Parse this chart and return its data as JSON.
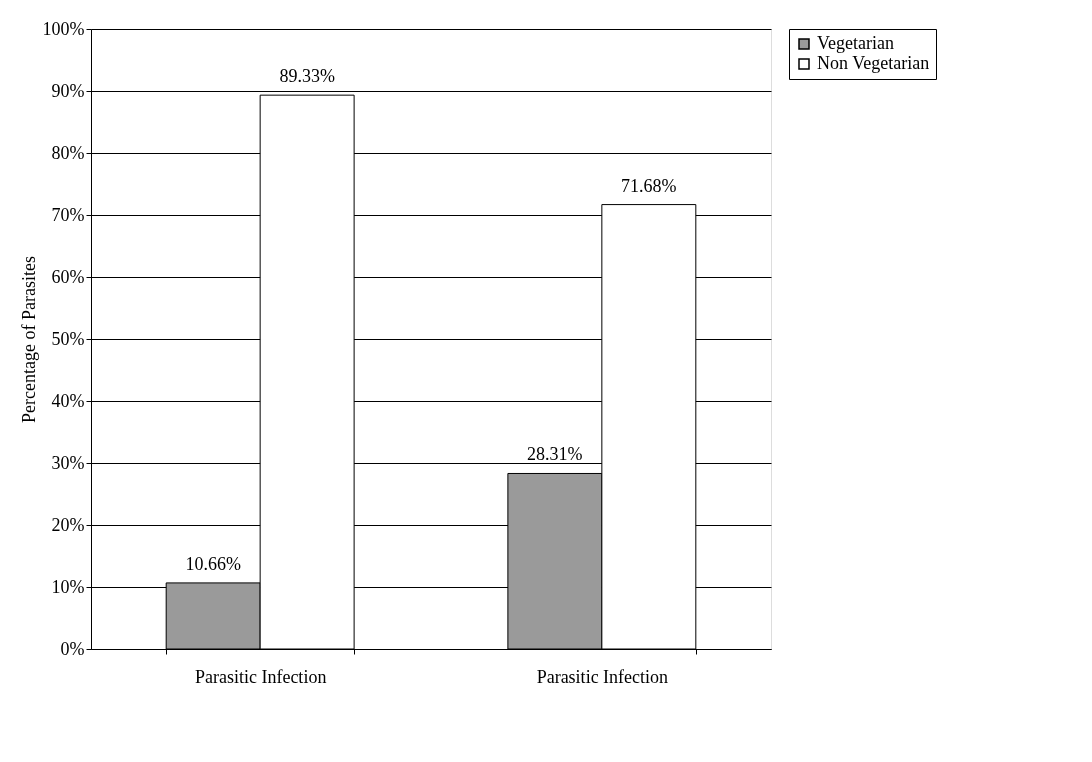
{
  "chart_data": {
    "type": "bar",
    "ylabel": "Percentage of Parasites",
    "categories": [
      "Parasitic Infection",
      "Parasitic Infection"
    ],
    "series": [
      {
        "name": "Vegetarian",
        "color": "#9a9a9a",
        "values": [
          10.66,
          28.31
        ],
        "value_labels": [
          "10.66%",
          "28.31%"
        ]
      },
      {
        "name": "Non Vegetarian",
        "color": "#ffffff",
        "values": [
          89.33,
          71.68
        ],
        "value_labels": [
          "89.33%",
          "71.68%"
        ]
      }
    ],
    "ylim": [
      0,
      100
    ],
    "yticks": [
      {
        "value": 0,
        "label": "0%"
      },
      {
        "value": 10,
        "label": "10%"
      },
      {
        "value": 20,
        "label": "20%"
      },
      {
        "value": 30,
        "label": "30%"
      },
      {
        "value": 40,
        "label": "40%"
      },
      {
        "value": 50,
        "label": "50%"
      },
      {
        "value": 60,
        "label": "60%"
      },
      {
        "value": 70,
        "label": "70%"
      },
      {
        "value": 80,
        "label": "80%"
      },
      {
        "value": 90,
        "label": "90%"
      },
      {
        "value": 100,
        "label": "100%"
      }
    ],
    "grid": "y",
    "legend": "right"
  }
}
